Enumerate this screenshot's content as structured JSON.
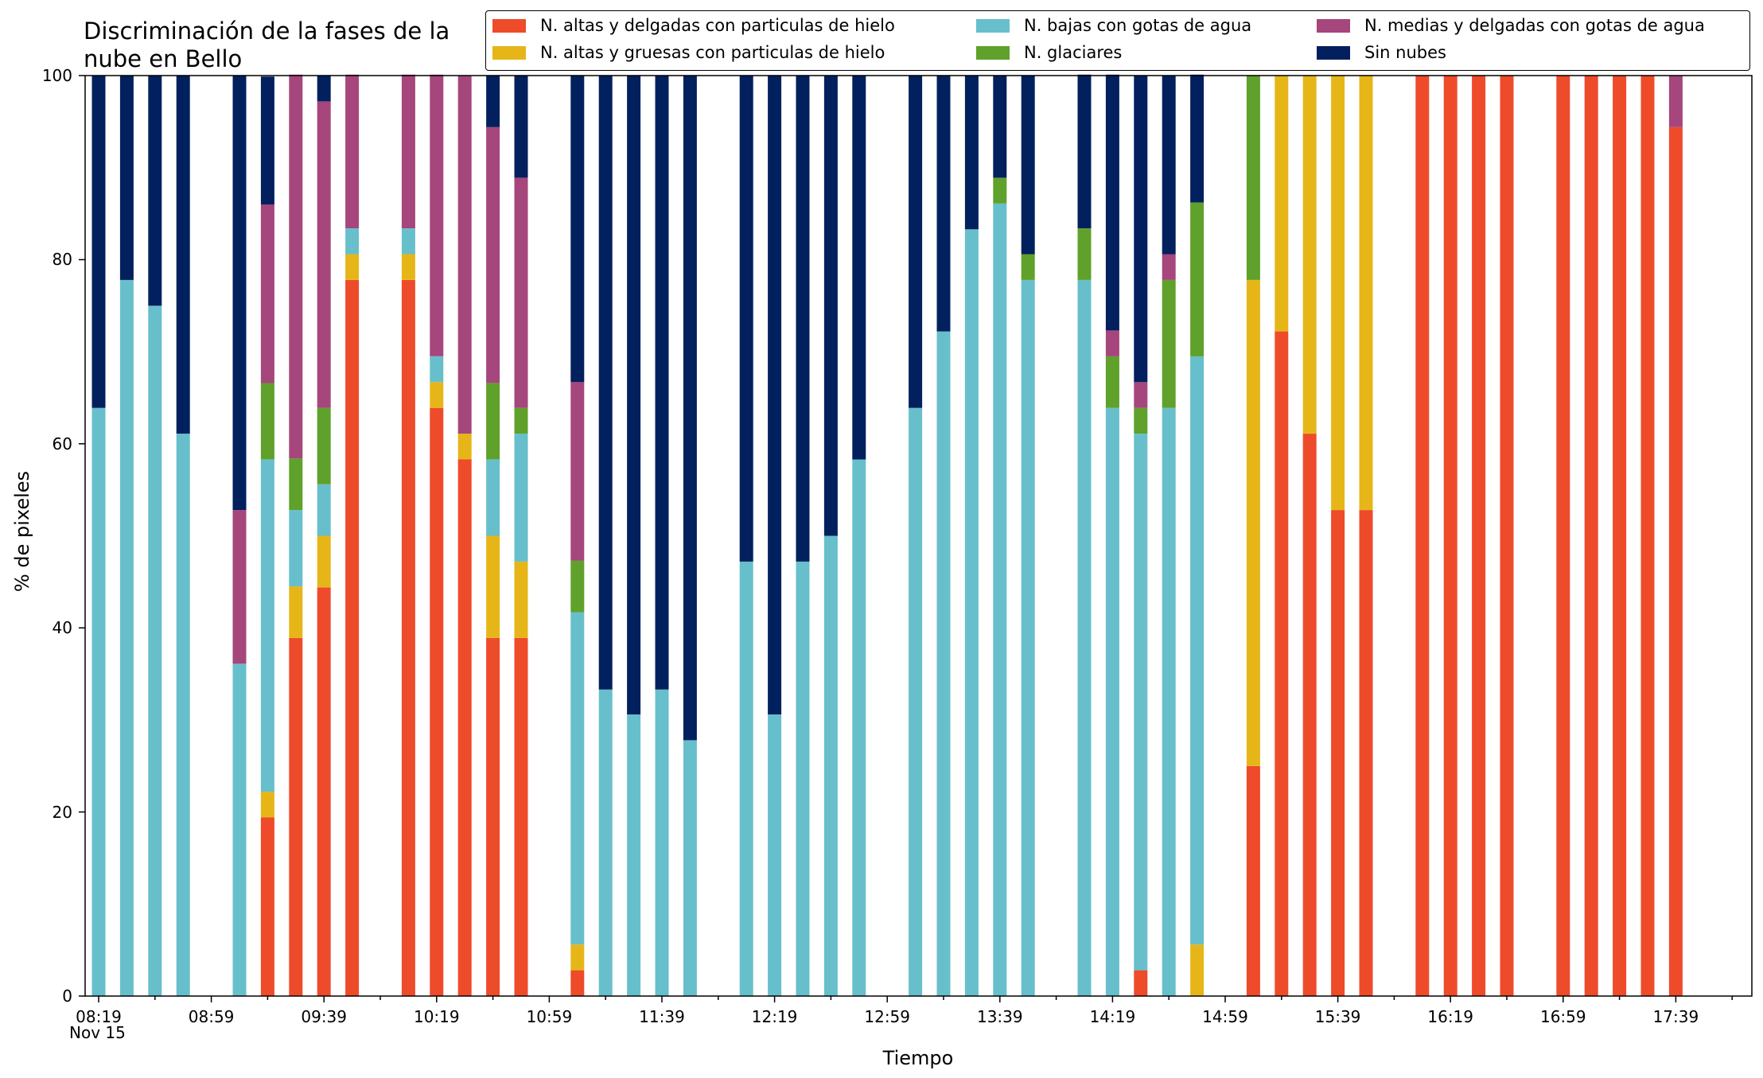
{
  "chart_data": {
    "type": "bar",
    "stacked": true,
    "title": "Discriminación de la fases de la\nnube en Bello",
    "xlabel": "Tiempo",
    "ylabel": "% de pixeles",
    "ylim": [
      0,
      100
    ],
    "yticks": [
      "0",
      "20",
      "40",
      "60",
      "80",
      "100"
    ],
    "xtick_labels": [
      "08:19",
      "08:59",
      "09:39",
      "10:19",
      "10:59",
      "11:39",
      "12:19",
      "12:59",
      "13:39",
      "14:19",
      "14:59",
      "15:39",
      "16:19",
      "16:59",
      "17:39"
    ],
    "x_sublabel": "Nov 15",
    "legend_position": "top-right",
    "series": [
      {
        "name": "N. altas y delgadas con particulas de hielo",
        "color": "#ee4b2b"
      },
      {
        "name": "N. altas y gruesas con particulas de hielo",
        "color": "#e6b619"
      },
      {
        "name": "N. bajas con gotas de agua",
        "color": "#67bfcb"
      },
      {
        "name": "N. glaciares",
        "color": "#5fa12b"
      },
      {
        "name": "N. medias y delgadas con gotas de agua",
        "color": "#a5467c"
      },
      {
        "name": "Sin nubes",
        "color": "#03205e"
      }
    ],
    "bars": [
      {
        "slot": 0,
        "values": [
          0,
          0,
          63.9,
          0,
          0,
          36.1
        ]
      },
      {
        "slot": 1,
        "values": [
          0,
          0,
          77.8,
          0,
          0,
          22.2
        ]
      },
      {
        "slot": 2,
        "values": [
          0,
          0,
          75.0,
          0,
          0,
          25.0
        ]
      },
      {
        "slot": 3,
        "values": [
          0,
          0,
          61.1,
          0,
          0,
          38.9
        ]
      },
      {
        "slot": 5,
        "values": [
          0,
          0,
          36.1,
          0,
          16.7,
          47.2
        ]
      },
      {
        "slot": 6,
        "values": [
          19.4,
          2.8,
          36.1,
          8.3,
          19.4,
          13.9
        ]
      },
      {
        "slot": 7,
        "values": [
          38.9,
          5.6,
          8.3,
          5.6,
          41.7,
          0
        ]
      },
      {
        "slot": 8,
        "values": [
          44.4,
          5.6,
          5.6,
          8.3,
          33.3,
          2.8
        ]
      },
      {
        "slot": 9,
        "values": [
          77.8,
          2.8,
          2.8,
          0,
          16.7,
          0
        ]
      },
      {
        "slot": 11,
        "values": [
          77.8,
          2.8,
          2.8,
          0,
          16.7,
          0
        ]
      },
      {
        "slot": 12,
        "values": [
          63.9,
          2.8,
          2.8,
          0,
          30.6,
          0
        ]
      },
      {
        "slot": 13,
        "values": [
          58.3,
          2.8,
          0,
          0,
          38.9,
          0
        ]
      },
      {
        "slot": 14,
        "values": [
          38.9,
          11.1,
          8.3,
          8.3,
          27.8,
          5.6
        ]
      },
      {
        "slot": 15,
        "values": [
          38.9,
          8.3,
          13.9,
          2.8,
          25.0,
          11.1
        ]
      },
      {
        "slot": 17,
        "values": [
          2.8,
          2.8,
          36.1,
          5.6,
          19.4,
          33.3
        ]
      },
      {
        "slot": 18,
        "values": [
          0,
          0,
          33.3,
          0,
          0,
          66.7
        ]
      },
      {
        "slot": 19,
        "values": [
          0,
          0,
          30.6,
          0,
          0,
          69.4
        ]
      },
      {
        "slot": 20,
        "values": [
          0,
          0,
          33.3,
          0,
          0,
          66.7
        ]
      },
      {
        "slot": 21,
        "values": [
          0,
          0,
          27.8,
          0,
          0,
          72.2
        ]
      },
      {
        "slot": 23,
        "values": [
          0,
          0,
          47.2,
          0,
          0,
          52.8
        ]
      },
      {
        "slot": 24,
        "values": [
          0,
          0,
          30.6,
          0,
          0,
          69.4
        ]
      },
      {
        "slot": 25,
        "values": [
          0,
          0,
          47.2,
          0,
          0,
          52.8
        ]
      },
      {
        "slot": 26,
        "values": [
          0,
          0,
          50.0,
          0,
          0,
          50.0
        ]
      },
      {
        "slot": 27,
        "values": [
          0,
          0,
          58.3,
          0,
          0,
          41.7
        ]
      },
      {
        "slot": 29,
        "values": [
          0,
          0,
          63.9,
          0,
          0,
          36.1
        ]
      },
      {
        "slot": 30,
        "values": [
          0,
          0,
          72.2,
          0,
          0,
          27.8
        ]
      },
      {
        "slot": 31,
        "values": [
          0,
          0,
          83.3,
          0,
          0,
          16.7
        ]
      },
      {
        "slot": 32,
        "values": [
          0,
          0,
          86.1,
          2.8,
          0,
          11.1
        ]
      },
      {
        "slot": 33,
        "values": [
          0,
          0,
          77.8,
          2.8,
          0,
          19.4
        ]
      },
      {
        "slot": 35,
        "values": [
          0,
          0,
          77.8,
          5.6,
          0,
          16.7
        ]
      },
      {
        "slot": 36,
        "values": [
          0,
          0,
          63.9,
          5.6,
          2.8,
          27.8
        ]
      },
      {
        "slot": 37,
        "values": [
          2.8,
          0,
          58.3,
          2.8,
          2.8,
          33.3
        ]
      },
      {
        "slot": 38,
        "values": [
          0,
          0,
          63.9,
          13.9,
          2.8,
          19.4
        ]
      },
      {
        "slot": 39,
        "values": [
          0,
          5.6,
          63.9,
          16.7,
          0,
          13.9
        ]
      },
      {
        "slot": 41,
        "values": [
          25.0,
          52.8,
          0,
          22.2,
          0,
          0
        ]
      },
      {
        "slot": 42,
        "values": [
          72.2,
          27.8,
          0,
          0,
          0,
          0
        ]
      },
      {
        "slot": 43,
        "values": [
          61.1,
          38.9,
          0,
          0,
          0,
          0
        ]
      },
      {
        "slot": 44,
        "values": [
          52.8,
          47.2,
          0,
          0,
          0,
          0
        ]
      },
      {
        "slot": 45,
        "values": [
          52.8,
          47.2,
          0,
          0,
          0,
          0
        ]
      },
      {
        "slot": 47,
        "values": [
          100,
          0,
          0,
          0,
          0,
          0
        ]
      },
      {
        "slot": 48,
        "values": [
          100,
          0,
          0,
          0,
          0,
          0
        ]
      },
      {
        "slot": 49,
        "values": [
          100,
          0,
          0,
          0,
          0,
          0
        ]
      },
      {
        "slot": 50,
        "values": [
          100,
          0,
          0,
          0,
          0,
          0
        ]
      },
      {
        "slot": 52,
        "values": [
          100,
          0,
          0,
          0,
          0,
          0
        ]
      },
      {
        "slot": 53,
        "values": [
          100,
          0,
          0,
          0,
          0,
          0
        ]
      },
      {
        "slot": 54,
        "values": [
          100,
          0,
          0,
          0,
          0,
          0
        ]
      },
      {
        "slot": 55,
        "values": [
          100,
          0,
          0,
          0,
          0,
          0
        ]
      },
      {
        "slot": 56,
        "values": [
          94.4,
          0,
          0,
          0,
          5.6,
          0
        ]
      }
    ]
  }
}
